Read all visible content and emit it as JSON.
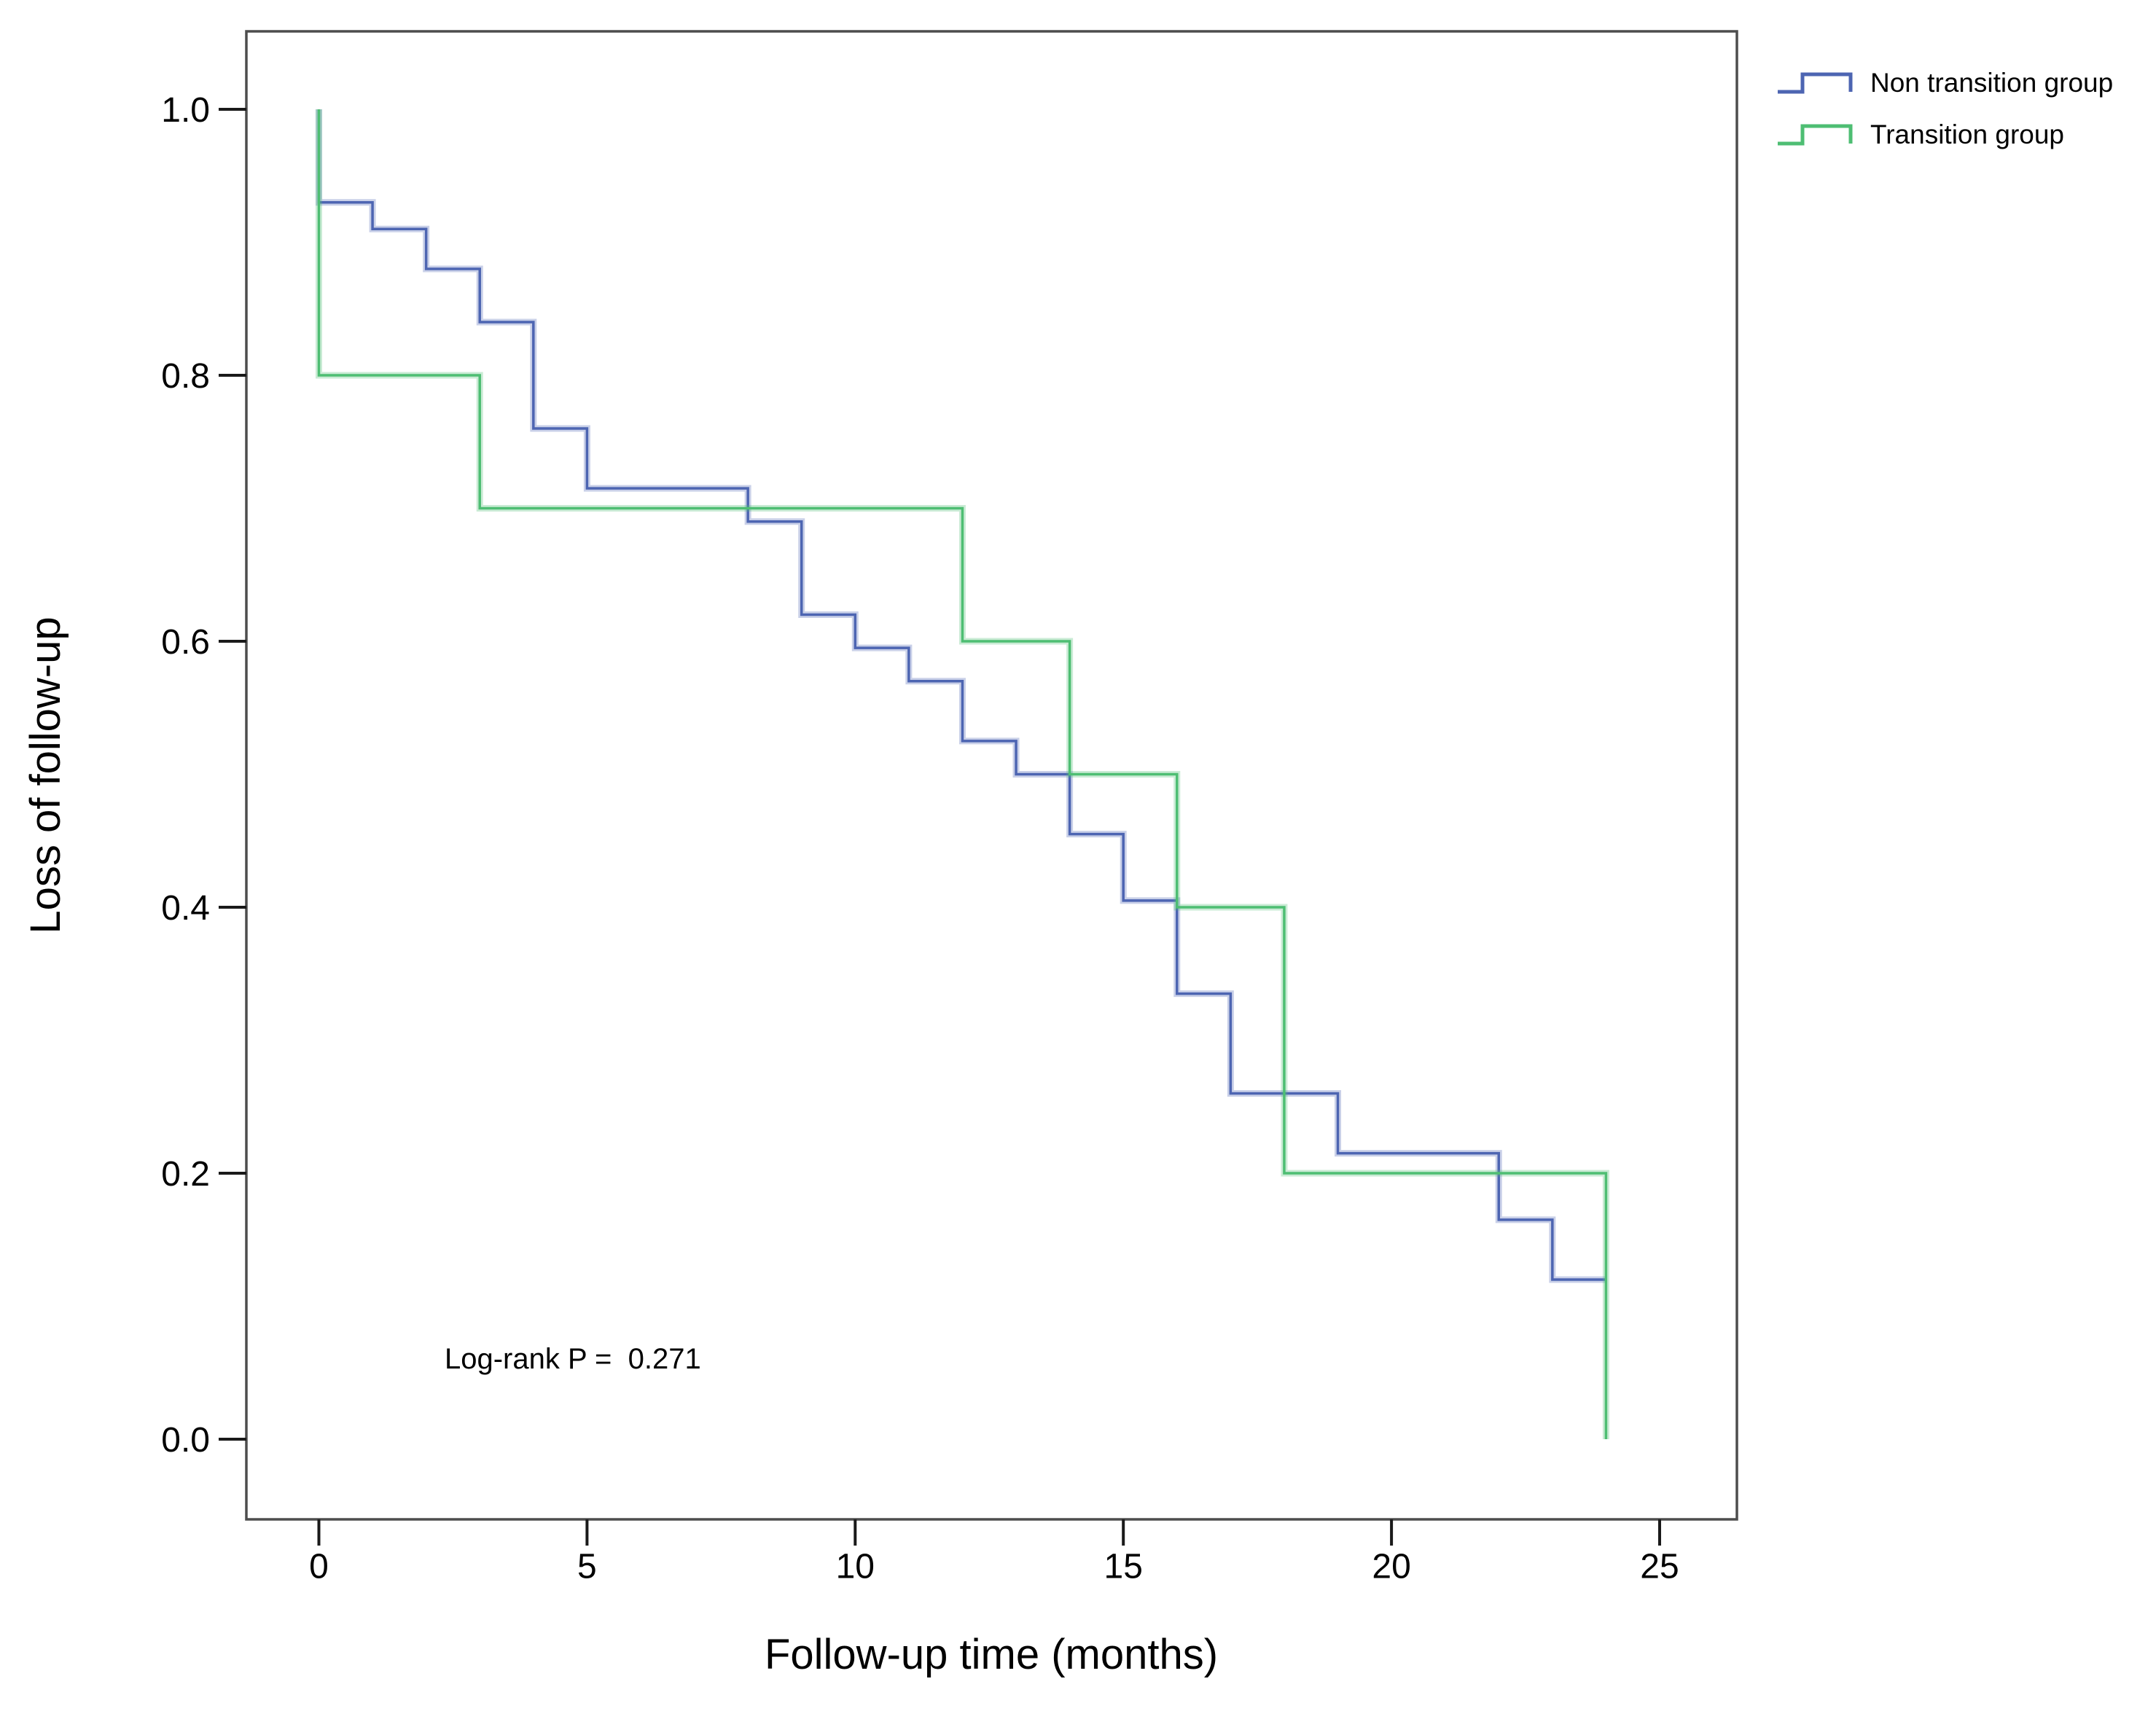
{
  "figure_type": "kaplan-meier-survival-plot",
  "chart_data": {
    "type": "line",
    "subtype": "step-survival",
    "title": "",
    "xlabel": "Follow-up time (months)",
    "ylabel": "Loss of follow-up",
    "annotation": "Log-rank P =  0.271",
    "xlim": [
      0,
      25
    ],
    "ylim": [
      0.0,
      1.0
    ],
    "grid": false,
    "legend_position": "top-right-outside",
    "x_ticks": [
      0,
      5,
      10,
      15,
      20,
      25
    ],
    "x_tick_labels": [
      "0",
      "5",
      "10",
      "15",
      "20",
      "25"
    ],
    "y_ticks": [
      0.0,
      0.2,
      0.4,
      0.6,
      0.8,
      1.0
    ],
    "y_tick_labels": [
      "0.0",
      "0.2",
      "0.4",
      "0.6",
      "0.8",
      "1.0"
    ],
    "series": [
      {
        "name": "Non transition group",
        "color": "#4D65B2",
        "start": [
          0,
          1.0
        ],
        "drops": [
          [
            0,
            0.93
          ],
          [
            1,
            0.91
          ],
          [
            2,
            0.88
          ],
          [
            3,
            0.84
          ],
          [
            4,
            0.76
          ],
          [
            5,
            0.715
          ],
          [
            8,
            0.69
          ],
          [
            9,
            0.62
          ],
          [
            10,
            0.595
          ],
          [
            11,
            0.57
          ],
          [
            12,
            0.525
          ],
          [
            13,
            0.5
          ],
          [
            14,
            0.455
          ],
          [
            15,
            0.405
          ],
          [
            16,
            0.335
          ],
          [
            17,
            0.26
          ],
          [
            19,
            0.215
          ],
          [
            22,
            0.165
          ],
          [
            23,
            0.12
          ]
        ],
        "end_x": 24,
        "end_value": 0.12
      },
      {
        "name": "Transition group",
        "color": "#4EBE73",
        "start": [
          0,
          1.0
        ],
        "drops": [
          [
            0,
            0.8
          ],
          [
            3,
            0.7
          ],
          [
            12,
            0.6
          ],
          [
            14,
            0.5
          ],
          [
            16,
            0.4
          ],
          [
            18,
            0.2
          ],
          [
            24,
            0.0
          ]
        ],
        "end_x": 24,
        "end_value": 0.0
      }
    ]
  },
  "style_colors": {
    "frame": "#4d4d4d",
    "ticks": "#1a1a1a",
    "text": "#000000",
    "background": "#ffffff"
  }
}
